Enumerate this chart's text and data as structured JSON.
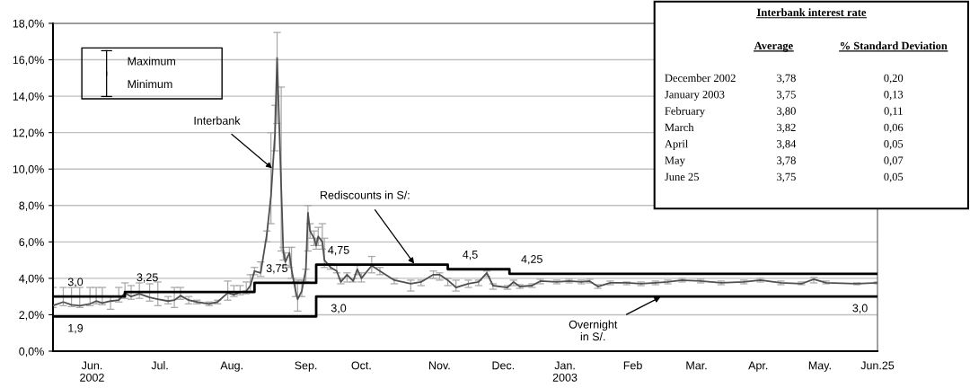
{
  "chart_data": [
    {
      "type": "line",
      "xlim": [
        "2002-05-20",
        "2003-06-25"
      ],
      "ylim": [
        0,
        18
      ],
      "xticks": [
        {
          "value": "2002-06-08",
          "label": "Jun.\n2002"
        },
        {
          "value": "2002-07-11",
          "label": "Jul."
        },
        {
          "value": "2002-08-15",
          "label": "Aug."
        },
        {
          "value": "2002-09-20",
          "label": "Sep."
        },
        {
          "value": "2002-10-17",
          "label": "Oct."
        },
        {
          "value": "2002-11-24",
          "label": "Nov."
        },
        {
          "value": "2002-12-25",
          "label": "Dec."
        },
        {
          "value": "2003-01-24",
          "label": "Jan.\n2003"
        },
        {
          "value": "2003-02-26",
          "label": "Feb"
        },
        {
          "value": "2003-03-29",
          "label": "Mar."
        },
        {
          "value": "2003-04-28",
          "label": "Apr."
        },
        {
          "value": "2003-05-28",
          "label": "May."
        },
        {
          "value": "2003-06-25",
          "label": "Jun.25"
        }
      ],
      "yticks": [
        {
          "value": 0,
          "label": "0,0%"
        },
        {
          "value": 2,
          "label": "2,0%"
        },
        {
          "value": 4,
          "label": "4,0%"
        },
        {
          "value": 6,
          "label": "6,0%"
        },
        {
          "value": 8,
          "label": "8,0%"
        },
        {
          "value": 10,
          "label": "10,0%"
        },
        {
          "value": 12,
          "label": "12,0%"
        },
        {
          "value": 14,
          "label": "14,0%"
        },
        {
          "value": 16,
          "label": "16,0%"
        },
        {
          "value": 18,
          "label": "18,0%"
        }
      ],
      "grid": "y",
      "series": [
        {
          "type": "line",
          "color": "#505050",
          "x": [
            "2002-05-20",
            "2002-05-25",
            "2002-05-29",
            "2002-06-02",
            "2002-06-07",
            "2002-06-10",
            "2002-06-13",
            "2002-06-17",
            "2002-06-21",
            "2002-06-24",
            "2002-06-27",
            "2002-07-01",
            "2002-07-06",
            "2002-07-10",
            "2002-07-15",
            "2002-07-18",
            "2002-07-21",
            "2002-07-25",
            "2002-07-29",
            "2002-08-04",
            "2002-08-08",
            "2002-08-13",
            "2002-08-16",
            "2002-08-19",
            "2002-08-22",
            "2002-08-24",
            "2002-08-26",
            "2002-08-29",
            "2002-09-01",
            "2002-09-03",
            "2002-09-05",
            "2002-09-06",
            "2002-09-08",
            "2002-09-09",
            "2002-09-10",
            "2002-09-12",
            "2002-09-13",
            "2002-09-15",
            "2002-09-16",
            "2002-09-18",
            "2002-09-20",
            "2002-09-21",
            "2002-09-22",
            "2002-09-24",
            "2002-09-25",
            "2002-09-26",
            "2002-09-28",
            "2002-09-29",
            "2002-10-02",
            "2002-10-05",
            "2002-10-07",
            "2002-10-10",
            "2002-10-13",
            "2002-10-15",
            "2002-10-17",
            "2002-10-22",
            "2002-10-26",
            "2002-11-02",
            "2002-11-10",
            "2002-11-15",
            "2002-11-21",
            "2002-11-24",
            "2002-11-28",
            "2002-12-02",
            "2002-12-08",
            "2002-12-13",
            "2002-12-17",
            "2002-12-20",
            "2002-12-27",
            "2002-12-30",
            "2003-01-02",
            "2003-01-08",
            "2003-01-12",
            "2003-01-20",
            "2003-01-26",
            "2003-02-01",
            "2003-02-05",
            "2003-02-09",
            "2003-02-15",
            "2003-02-23",
            "2003-03-02",
            "2003-03-09",
            "2003-03-15",
            "2003-03-22",
            "2003-03-31",
            "2003-04-10",
            "2003-04-21",
            "2003-04-29",
            "2003-05-09",
            "2003-05-19",
            "2003-05-25",
            "2003-05-31",
            "2003-06-15",
            "2003-06-25"
          ],
          "values": [
            2.5,
            2.7,
            2.55,
            2.5,
            2.6,
            2.75,
            2.65,
            2.75,
            2.8,
            3.2,
            3.0,
            3.15,
            2.95,
            2.85,
            2.75,
            2.8,
            3.05,
            2.8,
            2.7,
            2.6,
            2.7,
            3.2,
            3.1,
            3.25,
            3.3,
            3.6,
            4.4,
            4.3,
            6.4,
            8.5,
            12.0,
            16.1,
            9.0,
            5.5,
            4.9,
            5.4,
            4.5,
            3.3,
            2.85,
            3.3,
            4.5,
            7.6,
            6.6,
            6.2,
            5.8,
            6.3,
            6.0,
            5.0,
            4.6,
            4.4,
            3.8,
            4.2,
            3.85,
            4.5,
            4.0,
            4.7,
            4.4,
            3.9,
            3.7,
            3.8,
            4.2,
            4.2,
            3.9,
            3.5,
            3.7,
            3.8,
            4.3,
            3.6,
            3.5,
            3.8,
            3.55,
            3.6,
            3.85,
            3.8,
            3.85,
            3.8,
            3.85,
            3.55,
            3.75,
            3.75,
            3.7,
            3.75,
            3.8,
            3.9,
            3.85,
            3.75,
            3.8,
            3.9,
            3.75,
            3.7,
            3.95,
            3.75,
            3.7,
            3.75
          ],
          "errors": [
            [
              2.4,
              3.5
            ],
            [
              2.5,
              3.5
            ],
            [
              2.45,
              3.5
            ],
            [
              2.4,
              3.5
            ],
            [
              2.5,
              3.5
            ],
            [
              2.6,
              3.5
            ],
            [
              2.55,
              3.5
            ],
            [
              2.3,
              3.0
            ],
            [
              2.7,
              3.5
            ],
            [
              2.9,
              3.75
            ],
            [
              2.85,
              3.6
            ],
            [
              2.9,
              3.75
            ],
            [
              2.75,
              3.7
            ],
            [
              2.5,
              3.8
            ],
            [
              2.6,
              3.0
            ],
            [
              2.4,
              3.5
            ],
            [
              2.85,
              3.5
            ],
            [
              2.6,
              3.0
            ],
            [
              2.6,
              2.8
            ],
            [
              2.5,
              2.7
            ],
            [
              2.6,
              2.8
            ],
            [
              2.8,
              3.85
            ],
            [
              3.0,
              3.6
            ],
            [
              3.1,
              3.6
            ],
            [
              3.15,
              3.8
            ],
            [
              3.3,
              4.2
            ],
            [
              4.2,
              4.6
            ],
            [
              4.1,
              4.9
            ],
            [
              6.0,
              6.6
            ],
            [
              7.0,
              12.0
            ],
            [
              11.0,
              13.5
            ],
            [
              12.5,
              17.5
            ],
            [
              5.5,
              14.5
            ],
            [
              5.0,
              5.7
            ],
            [
              4.7,
              5.4
            ],
            [
              4.6,
              5.7
            ],
            [
              4.0,
              5.7
            ],
            [
              3.0,
              3.8
            ],
            [
              2.2,
              3.9
            ],
            [
              3.0,
              3.9
            ],
            [
              3.8,
              4.5
            ],
            [
              5.5,
              8.0
            ],
            [
              6.2,
              7.0
            ],
            [
              5.8,
              6.6
            ],
            [
              5.6,
              6.2
            ],
            [
              5.8,
              6.8
            ],
            [
              5.6,
              7.0
            ],
            [
              4.6,
              6.2
            ],
            [
              4.5,
              4.8
            ],
            [
              4.3,
              4.7
            ],
            [
              3.7,
              4.0
            ],
            [
              3.8,
              4.3
            ],
            [
              3.8,
              4.0
            ],
            [
              4.2,
              4.7
            ],
            [
              3.8,
              4.3
            ],
            [
              4.3,
              5.2
            ],
            [
              4.2,
              4.6
            ],
            [
              3.7,
              4.0
            ],
            [
              3.3,
              3.9
            ],
            [
              3.6,
              3.9
            ],
            [
              4.0,
              4.4
            ],
            [
              3.9,
              4.3
            ],
            [
              3.6,
              4.0
            ],
            [
              3.3,
              3.9
            ],
            [
              3.5,
              3.9
            ],
            [
              3.6,
              3.9
            ],
            [
              4.1,
              4.4
            ],
            [
              3.4,
              3.7
            ],
            [
              3.4,
              3.6
            ],
            [
              3.6,
              3.9
            ],
            [
              3.45,
              3.65
            ],
            [
              3.5,
              3.7
            ],
            [
              3.7,
              3.95
            ],
            [
              3.7,
              3.9
            ],
            [
              3.75,
              3.95
            ],
            [
              3.7,
              3.9
            ],
            [
              3.75,
              3.95
            ],
            [
              3.45,
              3.65
            ],
            [
              3.65,
              3.85
            ],
            [
              3.65,
              3.8
            ],
            [
              3.6,
              3.8
            ],
            [
              3.65,
              3.85
            ],
            [
              3.7,
              3.9
            ],
            [
              3.8,
              4.0
            ],
            [
              3.75,
              3.95
            ],
            [
              3.65,
              3.85
            ],
            [
              3.7,
              3.9
            ],
            [
              3.8,
              4.0
            ],
            [
              3.65,
              3.85
            ],
            [
              3.65,
              3.8
            ],
            [
              3.75,
              4.05
            ],
            [
              3.7,
              3.85
            ],
            [
              3.65,
              3.75
            ],
            [
              3.7,
              3.8
            ]
          ]
        },
        {
          "type": "step",
          "color": "#000000",
          "x": [
            "2002-05-20",
            "2002-06-24",
            "2002-08-26",
            "2002-09-25",
            "2002-11-28",
            "2002-12-28",
            "2003-06-25"
          ],
          "values": [
            3.0,
            3.25,
            3.75,
            4.75,
            4.5,
            4.25,
            4.25
          ],
          "value_labels": [
            "3,0",
            "3,25",
            "3,75",
            "4,75",
            "4,5",
            "4,25",
            null
          ]
        },
        {
          "type": "step",
          "color": "#000000",
          "x": [
            "2002-05-20",
            "2002-09-25",
            "2003-06-25"
          ],
          "values": [
            1.9,
            3.0,
            3.0
          ],
          "value_labels": [
            "1,9",
            "3,0",
            "3,0"
          ]
        }
      ],
      "annotations": [
        "Maximum",
        "Minimum",
        {
          "text": "Interbank",
          "x": "2002-09-04",
          "y": 10.0
        },
        {
          "text": "Rediscounts in S/:",
          "x": "2002-11-12",
          "y": 4.75
        },
        {
          "text": "Overnight\nin S/.",
          "x": "2003-03-12",
          "y": 3.0
        }
      ]
    },
    {
      "type": "other",
      "title": "Interbank interest rate",
      "categories": [
        "December 2002",
        "January 2003",
        "February",
        "March",
        "April",
        "May",
        "June 25"
      ],
      "series": [
        {
          "name": "Average",
          "values": [
            3.78,
            3.75,
            3.8,
            3.82,
            3.84,
            3.78,
            3.75
          ],
          "value_labels": [
            "3,78",
            "3,75",
            "3,80",
            "3,82",
            "3,84",
            "3,78",
            "3,75"
          ]
        },
        {
          "name": "% Standard Deviation",
          "values": [
            0.2,
            0.13,
            0.11,
            0.06,
            0.05,
            0.07,
            0.05
          ],
          "value_labels": [
            "0,20",
            "0,13",
            "0,11",
            "0,06",
            "0,05",
            "0,07",
            "0,05"
          ]
        }
      ]
    }
  ]
}
